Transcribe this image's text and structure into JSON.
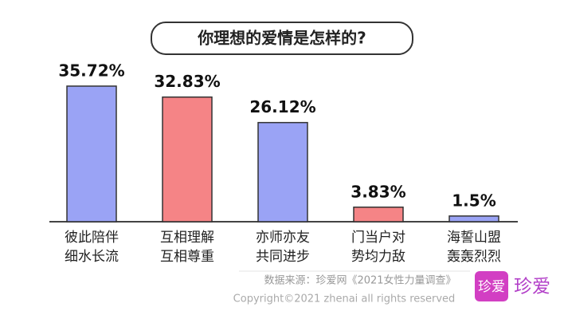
{
  "chart_data": {
    "type": "bar",
    "title": "你理想的爱情是怎样的?",
    "categories": [
      [
        "彼此陪伴",
        "细水长流"
      ],
      [
        "互相理解",
        "互相尊重"
      ],
      [
        "亦师亦友",
        "共同进步"
      ],
      [
        "门当户对",
        "势均力敌"
      ],
      [
        "海誓山盟",
        "轰轰烈烈"
      ]
    ],
    "values": [
      35.72,
      32.83,
      26.12,
      3.83,
      1.5
    ],
    "value_labels": [
      "35.72%",
      "32.83%",
      "26.12%",
      "3.83%",
      "1.5%"
    ],
    "colors": [
      "#9aa3f5",
      "#f58486",
      "#9aa3f5",
      "#f58486",
      "#9aa3f5"
    ],
    "source": "数据来源：珍爱网《2021女性力量调查》",
    "copyright": "Copyright©2021  zhenai  all rights reserved",
    "logo": "珍爱",
    "brand": "珍爱"
  }
}
